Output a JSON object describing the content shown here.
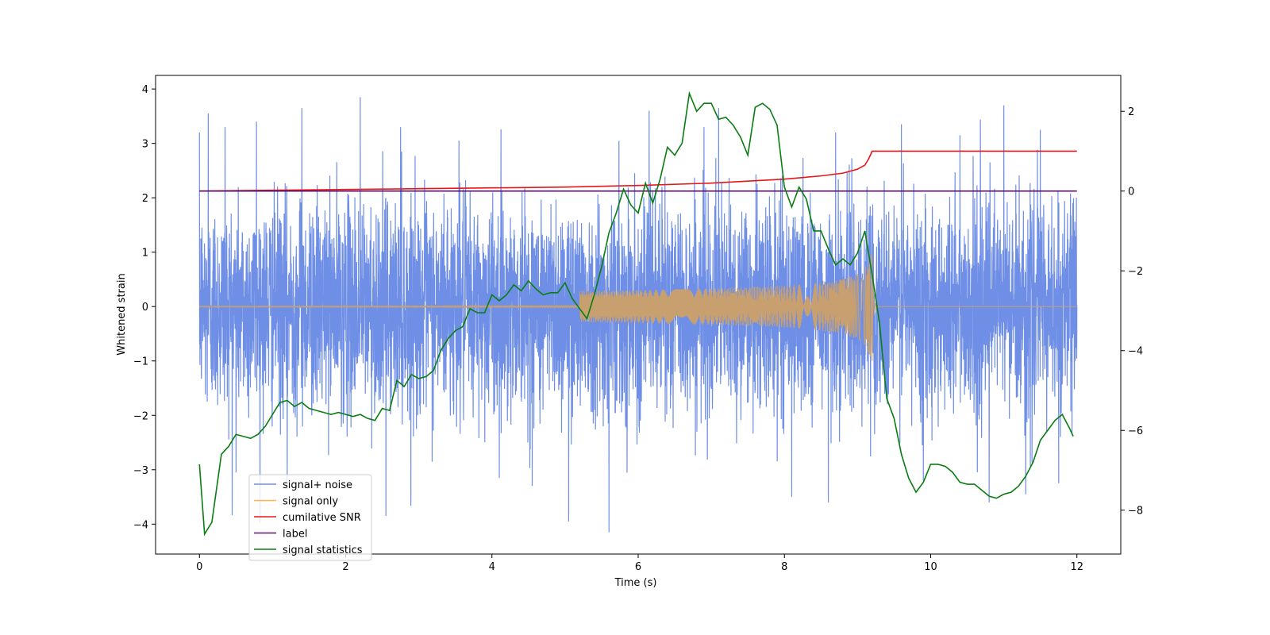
{
  "chart_data": {
    "type": "line",
    "xlabel": "Time (s)",
    "ylabel": "Whitened strain",
    "xlim": [
      -0.6,
      12.6
    ],
    "ylim": [
      -4.55,
      4.25
    ],
    "y2lim": [
      -9.1,
      2.9
    ],
    "xticks": [
      0,
      2,
      4,
      6,
      8,
      10,
      12
    ],
    "yticks": [
      -4,
      -3,
      -2,
      -1,
      0,
      1,
      2,
      3,
      4
    ],
    "y2ticks": [
      -8,
      -6,
      -4,
      -2,
      0,
      2
    ],
    "legend_position": "lower-left",
    "legend": [
      "signal+ noise",
      "signal only",
      "cumilative SNR",
      "label",
      "signal statistics"
    ],
    "colors": {
      "noise": "#6f8fe6",
      "signal": "#ffb74d",
      "signal_visible": "#c8a070",
      "snr": "#e8151b",
      "label": "#5b0f6b",
      "stats": "#0a7d12"
    },
    "series": [
      {
        "name": "signal+ noise",
        "axis": "left",
        "description_range": [
          -4.15,
          3.85
        ],
        "t_start": 0,
        "t_end": 12,
        "spikes": [
          [
            0,
            3.2
          ],
          [
            0.12,
            3.55
          ],
          [
            0.35,
            3.3
          ],
          [
            0.78,
            3.4
          ],
          [
            1.4,
            3.65
          ],
          [
            2.2,
            3.85
          ],
          [
            2.75,
            3.3
          ],
          [
            3.55,
            3.05
          ],
          [
            5.05,
            -3.95
          ],
          [
            5.6,
            -4.15
          ],
          [
            6.15,
            3.6
          ],
          [
            6.9,
            3.3
          ],
          [
            7.1,
            3.65
          ],
          [
            8.7,
            3.2
          ],
          [
            9.6,
            3.35
          ],
          [
            10.4,
            3.15
          ],
          [
            11.0,
            3.7
          ],
          [
            11.5,
            3.25
          ],
          [
            2.55,
            -3.85
          ],
          [
            0.5,
            -3.05
          ],
          [
            1.2,
            -3.35
          ],
          [
            4.1,
            -3.15
          ],
          [
            4.55,
            -3.3
          ],
          [
            8.1,
            -3.5
          ],
          [
            8.6,
            -3.6
          ],
          [
            9.9,
            -3.2
          ],
          [
            10.8,
            -3.6
          ],
          [
            11.3,
            -3.45
          ],
          [
            11.75,
            -3.25
          ]
        ]
      },
      {
        "name": "signal only",
        "axis": "left",
        "t_start": 0,
        "t_merger": 9.2,
        "t_end": 12,
        "peak_amplitude": 1.0
      },
      {
        "name": "cumilative SNR",
        "axis": "right",
        "x": [
          0,
          1,
          2,
          3,
          4,
          5,
          6,
          7,
          7.5,
          8,
          8.5,
          8.8,
          9.0,
          9.1,
          9.15,
          9.2,
          9.3,
          10,
          11,
          12
        ],
        "y": [
          0.0,
          0.02,
          0.04,
          0.06,
          0.08,
          0.1,
          0.14,
          0.2,
          0.25,
          0.3,
          0.38,
          0.45,
          0.55,
          0.65,
          0.8,
          1.0,
          1.0,
          1.0,
          1.0,
          1.0
        ]
      },
      {
        "name": "label",
        "axis": "right",
        "x": [
          0,
          12
        ],
        "y": [
          0,
          0
        ]
      },
      {
        "name": "signal statistics",
        "axis": "right",
        "x": [
          0,
          0.07,
          0.17,
          0.3,
          0.4,
          0.5,
          0.6,
          0.7,
          0.8,
          0.9,
          1.0,
          1.1,
          1.2,
          1.3,
          1.4,
          1.5,
          1.6,
          1.7,
          1.8,
          1.9,
          2.0,
          2.1,
          2.2,
          2.3,
          2.4,
          2.5,
          2.6,
          2.7,
          2.8,
          2.9,
          3.0,
          3.1,
          3.2,
          3.3,
          3.4,
          3.5,
          3.6,
          3.7,
          3.8,
          3.9,
          4.0,
          4.1,
          4.2,
          4.3,
          4.4,
          4.5,
          4.6,
          4.7,
          4.8,
          4.9,
          5.0,
          5.1,
          5.2,
          5.3,
          5.4,
          5.5,
          5.6,
          5.7,
          5.8,
          5.9,
          6.0,
          6.1,
          6.2,
          6.3,
          6.4,
          6.5,
          6.6,
          6.7,
          6.8,
          6.9,
          7.0,
          7.1,
          7.2,
          7.3,
          7.4,
          7.5,
          7.6,
          7.7,
          7.8,
          7.9,
          8.0,
          8.1,
          8.2,
          8.3,
          8.4,
          8.5,
          8.6,
          8.7,
          8.8,
          8.9,
          9.0,
          9.1,
          9.2,
          9.3,
          9.4,
          9.5,
          9.6,
          9.7,
          9.8,
          9.9,
          10.0,
          10.1,
          10.2,
          10.3,
          10.4,
          10.5,
          10.6,
          10.7,
          10.8,
          10.9,
          11.0,
          11.1,
          11.2,
          11.3,
          11.4,
          11.5,
          11.6,
          11.7,
          11.8,
          11.9,
          11.95
        ],
        "y": [
          -6.85,
          -8.6,
          -8.3,
          -6.6,
          -6.4,
          -6.1,
          -6.15,
          -6.2,
          -6.1,
          -5.9,
          -5.6,
          -5.3,
          -5.25,
          -5.4,
          -5.3,
          -5.45,
          -5.5,
          -5.55,
          -5.6,
          -5.55,
          -5.6,
          -5.65,
          -5.6,
          -5.7,
          -5.75,
          -5.45,
          -5.5,
          -4.75,
          -4.9,
          -4.6,
          -4.7,
          -4.65,
          -4.5,
          -4.0,
          -3.7,
          -3.5,
          -3.4,
          -2.95,
          -3.05,
          -3.05,
          -2.6,
          -2.75,
          -2.6,
          -2.35,
          -2.5,
          -2.25,
          -2.45,
          -2.6,
          -2.55,
          -2.55,
          -2.3,
          -2.7,
          -2.95,
          -3.2,
          -2.6,
          -1.9,
          -1.05,
          -0.55,
          0.05,
          -0.35,
          -0.55,
          0.2,
          -0.3,
          0.3,
          1.1,
          0.9,
          1.2,
          2.45,
          2.0,
          2.2,
          2.2,
          1.8,
          1.85,
          1.65,
          1.35,
          0.9,
          2.1,
          2.2,
          2.05,
          1.65,
          0.1,
          -0.4,
          0.1,
          -0.2,
          -1.0,
          -1.0,
          -1.45,
          -1.85,
          -1.7,
          -1.85,
          -1.55,
          -1.0,
          -2.1,
          -3.3,
          -5.2,
          -5.7,
          -6.6,
          -7.2,
          -7.55,
          -7.3,
          -6.85,
          -6.85,
          -6.9,
          -7.05,
          -7.3,
          -7.35,
          -7.35,
          -7.5,
          -7.65,
          -7.7,
          -7.6,
          -7.55,
          -7.4,
          -7.15,
          -6.8,
          -6.25,
          -6.0,
          -5.75,
          -5.6,
          -5.95,
          -6.15
        ]
      }
    ]
  }
}
